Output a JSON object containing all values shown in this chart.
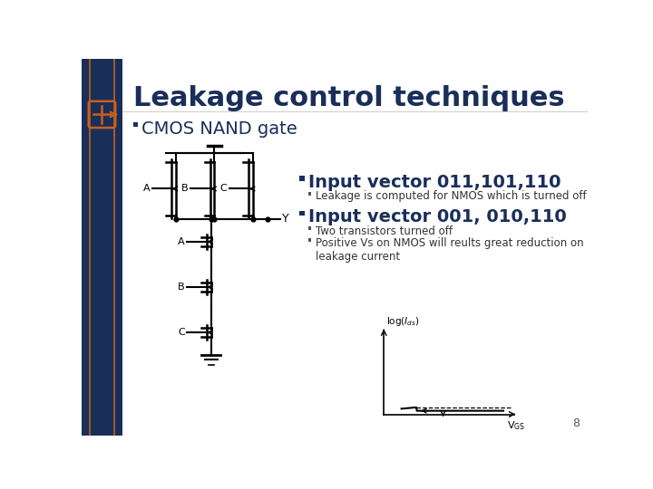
{
  "title": "Leakage control techniques",
  "title_color": "#1a2e5a",
  "title_fontsize": 22,
  "bg_color": "#ffffff",
  "left_bar_color": "#1a2e5a",
  "accent_color": "#c8601a",
  "bullet1": "CMOS NAND gate",
  "bullet1_fontsize": 14,
  "bullet2": "Input vector 011,101,110",
  "bullet2_fontsize": 14,
  "sub_bullet2": "Leakage is computed for NMOS which is turned off",
  "sub_bullet2_fontsize": 8.5,
  "bullet3": "Input vector 001, 010,110",
  "bullet3_fontsize": 14,
  "sub_bullet3a": "Two transistors turned off",
  "sub_bullet3b": "Positive Vs on NMOS will reults great reduction on\nleakage current",
  "sub_bullet3_fontsize": 8.5,
  "page_number": "8",
  "diagram_color": "#000000"
}
